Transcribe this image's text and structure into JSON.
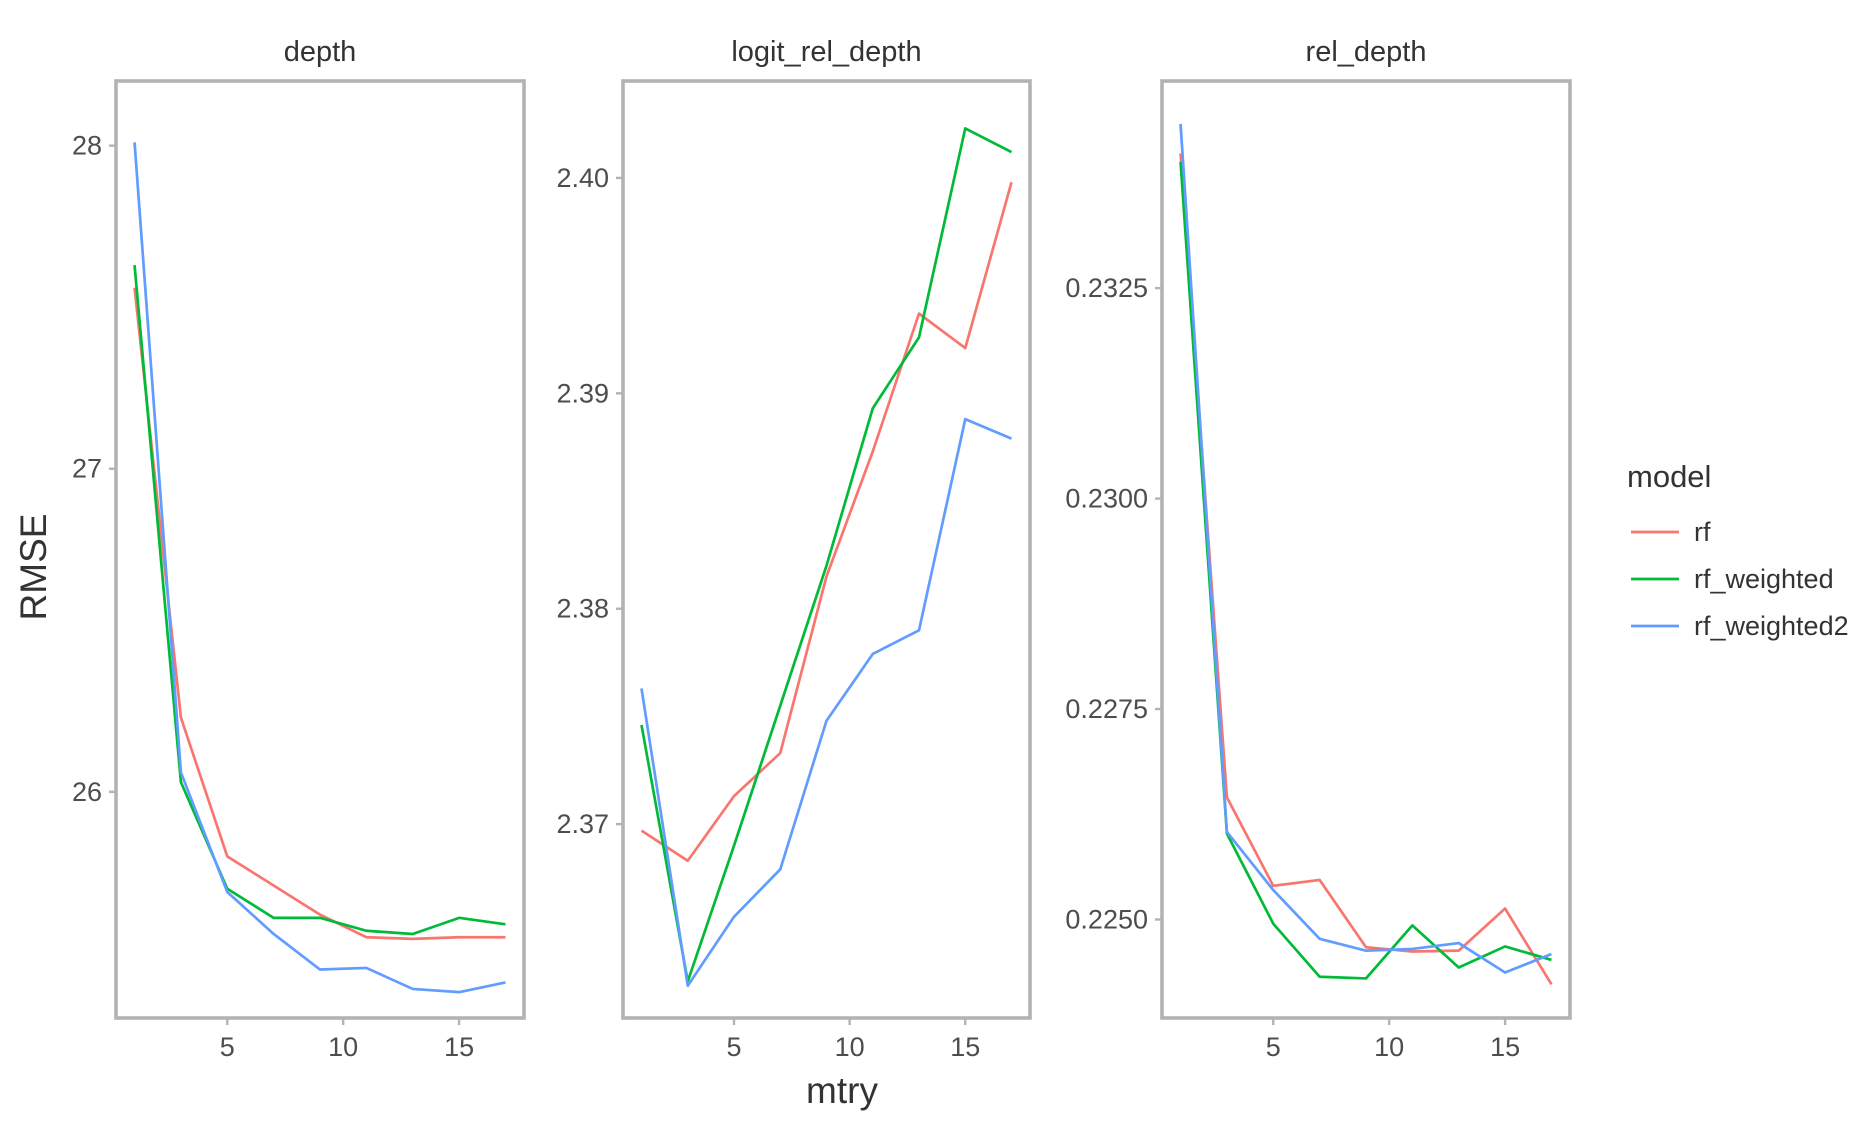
{
  "chart_data": {
    "type": "line",
    "xlabel": "mtry",
    "ylabel": "RMSE",
    "legend": {
      "title": "model",
      "position": "right",
      "entries": [
        {
          "key": "rf",
          "label": "rf",
          "color": "#F8766D"
        },
        {
          "key": "rf_weighted",
          "label": "rf_weighted",
          "color": "#00BA38"
        },
        {
          "key": "rf_weighted2",
          "label": "rf_weighted2",
          "color": "#619CFF"
        }
      ]
    },
    "x": [
      1,
      3,
      5,
      7,
      9,
      11,
      13,
      15,
      17
    ],
    "xlim": [
      0.2,
      17.8
    ],
    "xticks": [
      5,
      10,
      15
    ],
    "grid": false,
    "panels": [
      {
        "title": "depth",
        "ylim": [
          25.3,
          28.2
        ],
        "yticks": [
          26,
          27,
          28
        ],
        "series": [
          {
            "key": "rf",
            "values": [
              27.56,
              26.23,
              25.8,
              25.71,
              25.62,
              25.55,
              25.545,
              25.55,
              25.55
            ]
          },
          {
            "key": "rf_weighted",
            "values": [
              27.63,
              26.03,
              25.7,
              25.61,
              25.61,
              25.57,
              25.56,
              25.61,
              25.59
            ]
          },
          {
            "key": "rf_weighted2",
            "values": [
              28.01,
              26.06,
              25.69,
              25.56,
              25.45,
              25.455,
              25.39,
              25.38,
              25.41
            ]
          }
        ]
      },
      {
        "title": "logit_rel_depth",
        "ylim": [
          2.361,
          2.4045
        ],
        "yticks": [
          2.37,
          2.38,
          2.39,
          2.4
        ],
        "yticklabels": [
          "2.37",
          "2.38",
          "2.39",
          "2.40"
        ],
        "series": [
          {
            "key": "rf",
            "values": [
              2.3697,
              2.3683,
              2.3713,
              2.3733,
              2.3815,
              2.3873,
              2.3937,
              2.3921,
              2.3998
            ]
          },
          {
            "key": "rf_weighted",
            "values": [
              2.3746,
              2.3627,
              2.369,
              2.3755,
              2.382,
              2.3893,
              2.3926,
              2.4023,
              2.4012
            ]
          },
          {
            "key": "rf_weighted2",
            "values": [
              2.3763,
              2.3625,
              2.3657,
              2.3679,
              2.3748,
              2.3779,
              2.379,
              2.3888,
              2.3879
            ]
          }
        ]
      },
      {
        "title": "rel_depth",
        "ylim": [
          0.22383,
          0.23496
        ],
        "yticks": [
          0.225,
          0.2275,
          0.23,
          0.2325
        ],
        "yticklabels": [
          "0.2250",
          "0.2275",
          "0.2300",
          "0.2325"
        ],
        "series": [
          {
            "key": "rf",
            "values": [
              0.2341,
              0.22645,
              0.2254,
              0.22547,
              0.22467,
              0.22462,
              0.22463,
              0.22513,
              0.22423
            ]
          },
          {
            "key": "rf_weighted",
            "values": [
              0.234,
              0.22602,
              0.22495,
              0.22432,
              0.2243,
              0.22493,
              0.22443,
              0.22468,
              0.22452
            ]
          },
          {
            "key": "rf_weighted2",
            "values": [
              0.23445,
              0.22604,
              0.22535,
              0.22477,
              0.22463,
              0.22465,
              0.22472,
              0.22437,
              0.22459
            ]
          }
        ]
      }
    ]
  }
}
